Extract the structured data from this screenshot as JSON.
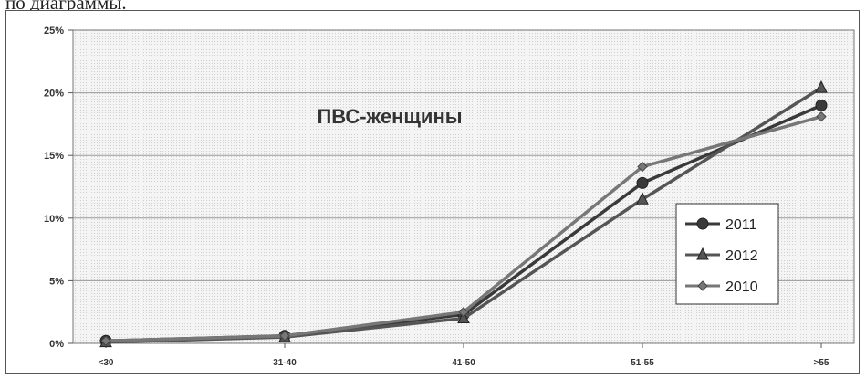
{
  "page": {
    "caption": "по диаграммы."
  },
  "chart_data": {
    "type": "line",
    "title": "ПВС-женщины",
    "xlabel": "",
    "ylabel": "",
    "categories": [
      "<30",
      "31-40",
      "41-50",
      "51-55",
      ">55"
    ],
    "ylim": [
      0,
      25
    ],
    "yticks": [
      "0%",
      "5%",
      "10%",
      "15%",
      "20%",
      "25%"
    ],
    "grid": true,
    "legend_position": "right",
    "series": [
      {
        "name": "2011",
        "marker": "circle",
        "color": "#3a3a3a",
        "values": [
          0.2,
          0.6,
          2.3,
          12.8,
          19.0
        ]
      },
      {
        "name": "2012",
        "marker": "triangle",
        "color": "#555555",
        "values": [
          0.1,
          0.5,
          2.0,
          11.5,
          20.4
        ]
      },
      {
        "name": "2010",
        "marker": "diamond",
        "color": "#777777",
        "values": [
          0.2,
          0.6,
          2.5,
          14.1,
          18.1
        ]
      }
    ]
  }
}
